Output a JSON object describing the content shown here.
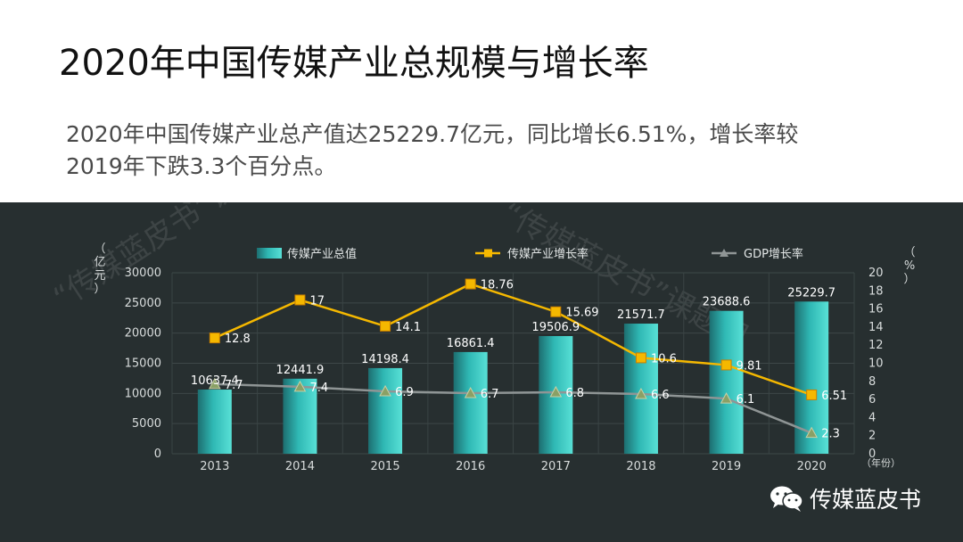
{
  "slide": {
    "title": "2020年中国传媒产业总规模与增长率",
    "body": "2020年中国传媒产业总产值达25229.7亿元，同比增长6.51%，增长率较2019年下跌3.3个百分点。"
  },
  "chart_data": {
    "type": "bar",
    "categories": [
      "2013",
      "2014",
      "2015",
      "2016",
      "2017",
      "2018",
      "2019",
      "2020"
    ],
    "series": [
      {
        "name": "传媒产业总值",
        "kind": "bar",
        "axis": "left",
        "color": "#2fb8b4",
        "values": [
          10637.4,
          12441.9,
          14198.4,
          16861.4,
          19506.9,
          21571.7,
          23688.6,
          25229.7
        ],
        "labels": [
          "10637.4",
          "12441.9",
          "14198.4",
          "16861.4",
          "19506.9",
          "21571.7",
          "23688.6",
          "25229.7"
        ]
      },
      {
        "name": "传媒产业增长率",
        "kind": "line",
        "axis": "right",
        "color": "#f5b800",
        "marker": "square",
        "values": [
          12.8,
          17,
          14.1,
          18.76,
          15.69,
          10.6,
          9.81,
          6.51
        ],
        "labels": [
          "12.8",
          "17",
          "14.1",
          "18.76",
          "15.69",
          "10.6",
          "9.81",
          "6.51"
        ]
      },
      {
        "name": "GDP增长率",
        "kind": "line",
        "axis": "right",
        "color": "#8f9595",
        "marker": "triangle",
        "values": [
          7.7,
          7.4,
          6.9,
          6.7,
          6.8,
          6.6,
          6.1,
          2.3
        ],
        "labels": [
          "7.7",
          "7.4",
          "6.9",
          "6.7",
          "6.8",
          "6.6",
          "6.1",
          "2.3"
        ]
      }
    ],
    "ylabel_left": "亿元",
    "ylabel_right": "%",
    "xlabel_unit": "年份",
    "ylim_left": [
      0,
      30000
    ],
    "yticks_left": [
      "0",
      "5000",
      "10000",
      "15000",
      "20000",
      "25000",
      "30000"
    ],
    "ylim_right": [
      0,
      20
    ],
    "yticks_right": [
      "0",
      "2",
      "4",
      "6",
      "8",
      "10",
      "12",
      "14",
      "16",
      "18",
      "20"
    ],
    "grid": true,
    "legend_position": "top"
  },
  "watermark": {
    "diagonal_text": "“传媒蓝皮书”课题组",
    "badge_text": "传媒蓝皮书",
    "icon": "wechat-icon"
  }
}
